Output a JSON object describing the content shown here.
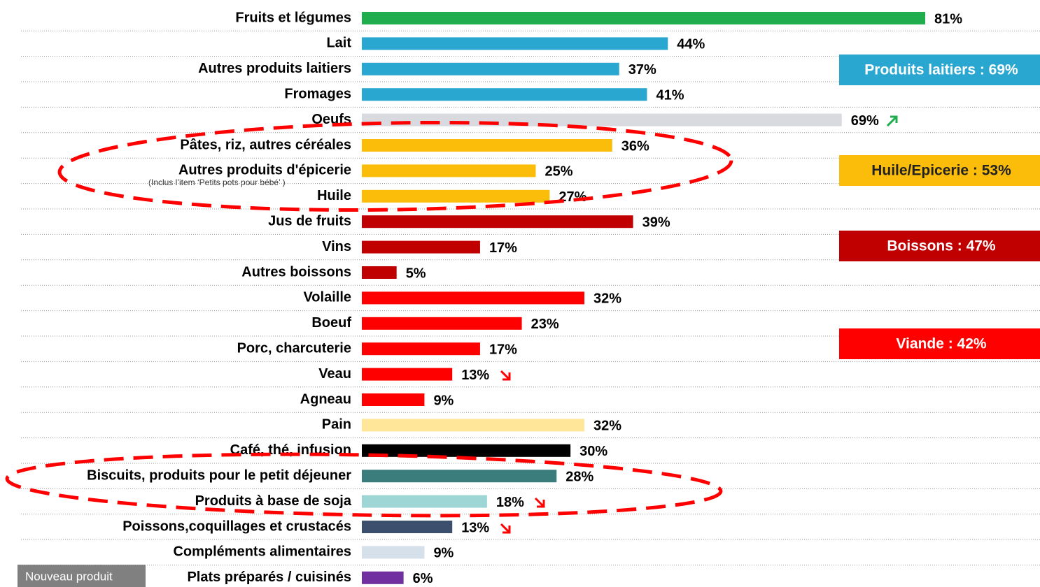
{
  "chart_data": {
    "type": "bar",
    "orientation": "horizontal",
    "categories": [
      "Fruits et légumes",
      "Lait",
      "Autres produits laitiers",
      "Fromages",
      "Oeufs",
      "Pâtes, riz, autres céréales",
      "Autres produits d'épicerie",
      "Huile",
      "Jus de fruits",
      "Vins",
      "Autres boissons",
      "Volaille",
      "Boeuf",
      "Porc, charcuterie",
      "Veau",
      "Agneau",
      "Pain",
      "Café, thé, infusion",
      "Biscuits, produits pour le petit déjeuner",
      "Produits à base de soja",
      "Poissons,coquillages et crustacés",
      "Compléments alimentaires",
      "Plats préparés / cuisinés"
    ],
    "values": [
      81,
      44,
      37,
      41,
      69,
      36,
      25,
      27,
      39,
      17,
      5,
      32,
      23,
      17,
      13,
      9,
      32,
      30,
      28,
      18,
      13,
      9,
      6
    ],
    "value_labels": [
      "81%",
      "44%",
      "37%",
      "41%",
      "69%",
      "36%",
      "25%",
      "27%",
      "39%",
      "17%",
      "5%",
      "32%",
      "23%",
      "17%",
      "13%",
      "9%",
      "32%",
      "30%",
      "28%",
      "18%",
      "13%",
      "9%",
      "6%"
    ],
    "colors": [
      "#1fad4e",
      "#2aa7d0",
      "#2aa7d0",
      "#2aa7d0",
      "#d9d9e0",
      "#fbbd0a",
      "#fbbd0a",
      "#fbbd0a",
      "#c00000",
      "#c00000",
      "#c00000",
      "#ff0000",
      "#ff0000",
      "#ff0000",
      "#ff0000",
      "#ff0000",
      "#ffe699",
      "#000000",
      "#3a7d7c",
      "#9ed6d6",
      "#3c506e",
      "#d6e0ea",
      "#7030a0"
    ],
    "note": "(Inclus l’item ‘Petits pots pour bébé’ )",
    "groups": [
      {
        "label": "Produits laitiers : 69%",
        "color": "#2aa7d0"
      },
      {
        "label": "Huile/Epicerie : 53%",
        "color": "#fbbd0a"
      },
      {
        "label": "Boissons : 47%",
        "color": "#c00000"
      },
      {
        "label": "Viande : 42%",
        "color": "#ff0000"
      }
    ],
    "badge": "Nouveau produit"
  }
}
